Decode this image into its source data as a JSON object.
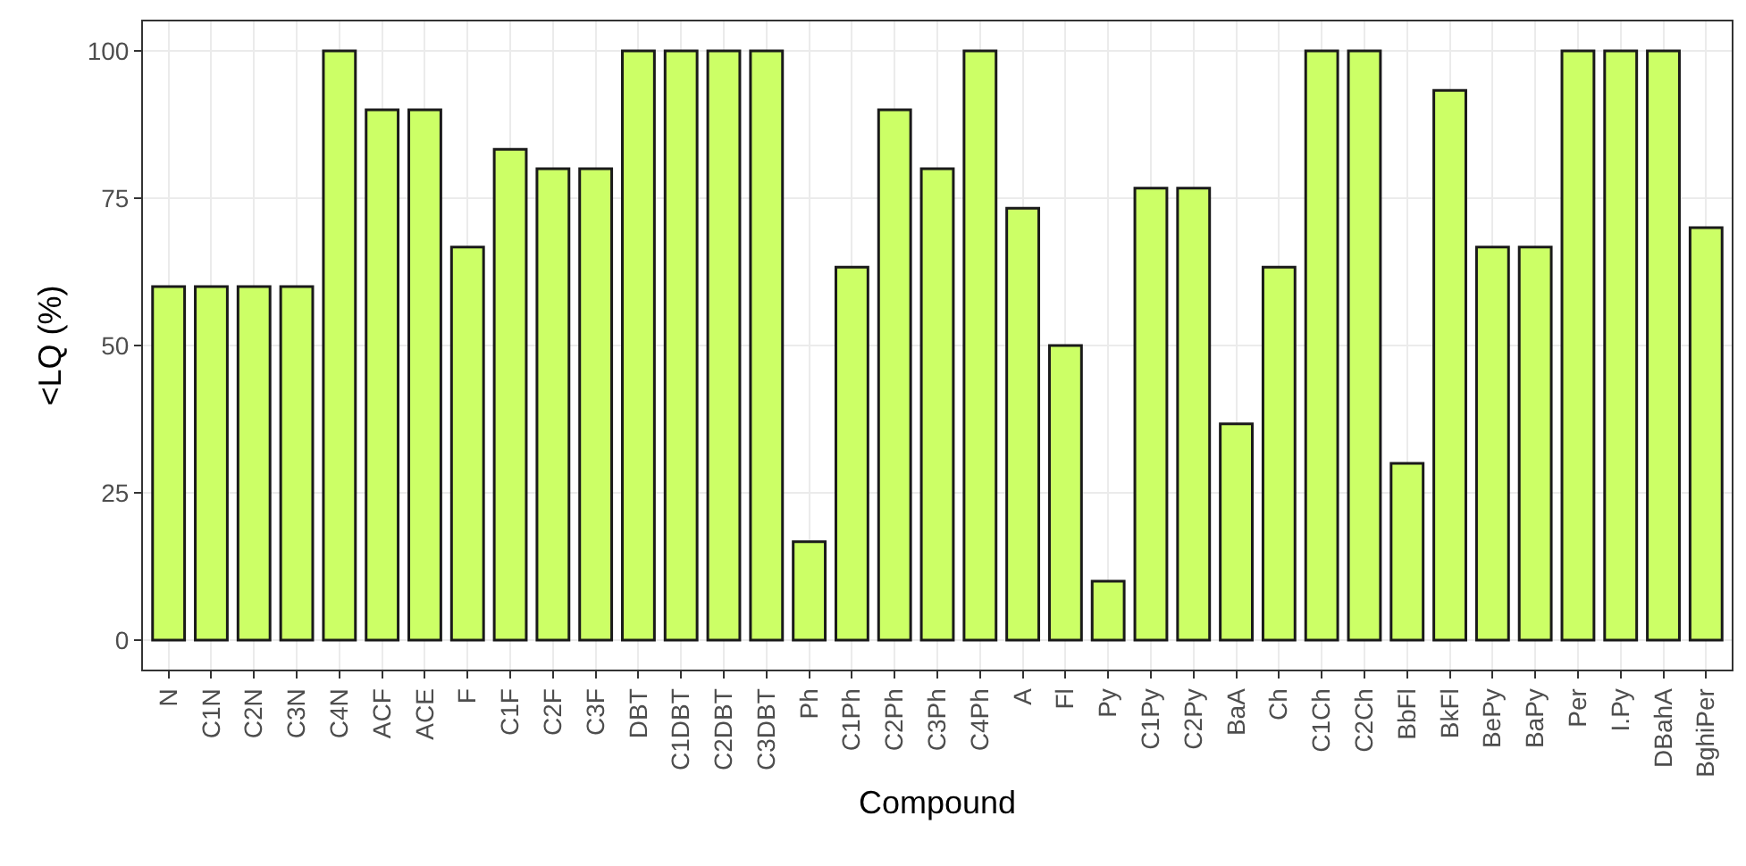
{
  "chart_data": {
    "type": "bar",
    "xlabel": "Compound",
    "ylabel": "<LQ (%)",
    "categories": [
      "N",
      "C1N",
      "C2N",
      "C3N",
      "C4N",
      "ACF",
      "ACE",
      "F",
      "C1F",
      "C2F",
      "C3F",
      "DBT",
      "C1DBT",
      "C2DBT",
      "C3DBT",
      "Ph",
      "C1Ph",
      "C2Ph",
      "C3Ph",
      "C4Ph",
      "A",
      "Fl",
      "Py",
      "C1Py",
      "C2Py",
      "BaA",
      "Ch",
      "C1Ch",
      "C2Ch",
      "BbFl",
      "BkFl",
      "BePy",
      "BaPy",
      "Per",
      "I.Py",
      "DBahA",
      "BghiPer"
    ],
    "values": [
      60,
      60,
      60,
      60,
      100,
      90,
      90,
      66.7,
      83.3,
      80,
      80,
      100,
      100,
      100,
      100,
      16.7,
      63.3,
      90,
      80,
      100,
      73.3,
      50,
      10,
      76.7,
      76.7,
      36.7,
      63.3,
      100,
      100,
      30,
      93.3,
      66.7,
      66.7,
      100,
      100,
      100,
      70
    ],
    "color": "#ccff66",
    "ylim": [
      -5,
      105
    ],
    "yticks": [
      0,
      25,
      50,
      75,
      100
    ],
    "grid": true
  }
}
